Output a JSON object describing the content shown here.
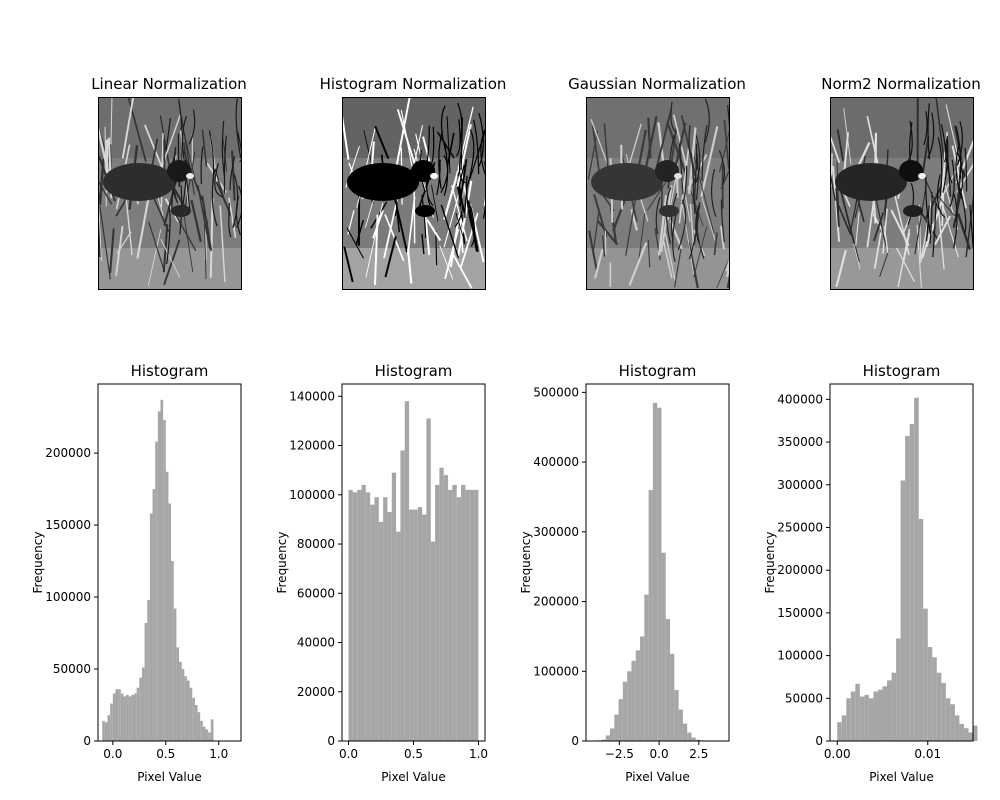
{
  "figure": {
    "photo_panels": [
      {
        "title": "Linear Normalization",
        "image": "grayscale photo of a coot bird among reeds (linear normalization)"
      },
      {
        "title": "Histogram Normalization",
        "image": "grayscale photo of a coot bird among reeds (histogram equalized, higher contrast)"
      },
      {
        "title": "Gaussian Normalization",
        "image": "grayscale photo of a coot bird among reeds (gaussian normalization)"
      },
      {
        "title": "Norm2 Normalization",
        "image": "grayscale photo of a coot bird among reeds (norm2 normalization)"
      }
    ],
    "bar_color": "#a6a6a6"
  },
  "chart_data": [
    {
      "type": "bar",
      "title": "Histogram",
      "xlabel": "Pixel Value",
      "ylabel": "Frequency",
      "xlim": [
        -0.14,
        1.21
      ],
      "ylim": [
        0,
        248000
      ],
      "xticks": [
        0.0,
        0.5,
        1.0
      ],
      "xtick_labels": [
        "0.0",
        "0.5",
        "1.0"
      ],
      "yticks": [
        0,
        50000,
        100000,
        150000,
        200000
      ],
      "ytick_labels": [
        "0",
        "50000",
        "100000",
        "150000",
        "200000"
      ],
      "bin_start": -0.1,
      "bin_width": 0.025,
      "values": [
        14000,
        13000,
        18000,
        26000,
        33000,
        36000,
        36000,
        33000,
        31000,
        32000,
        31000,
        32000,
        33000,
        37000,
        44000,
        51000,
        82000,
        98000,
        158000,
        175000,
        208000,
        229000,
        237000,
        223000,
        187000,
        165000,
        125000,
        92000,
        65000,
        55000,
        50000,
        45000,
        42000,
        37000,
        30000,
        25000,
        20000,
        14000,
        10000,
        8000,
        6000,
        15000
      ],
      "grid": false
    },
    {
      "type": "bar",
      "title": "Histogram",
      "xlabel": "Pixel Value",
      "ylabel": "Frequency",
      "xlim": [
        -0.05,
        1.05
      ],
      "ylim": [
        0,
        145000
      ],
      "xticks": [
        0.0,
        0.5,
        1.0
      ],
      "xtick_labels": [
        "0.0",
        "0.5",
        "1.0"
      ],
      "yticks": [
        0,
        20000,
        40000,
        60000,
        80000,
        100000,
        120000,
        140000
      ],
      "ytick_labels": [
        "0",
        "20000",
        "40000",
        "60000",
        "80000",
        "100000",
        "120000",
        "140000"
      ],
      "bin_start": 0.0,
      "bin_width": 0.0333,
      "values": [
        102000,
        101000,
        102000,
        104000,
        101000,
        96000,
        99000,
        89000,
        99000,
        93000,
        109000,
        85000,
        118000,
        138000,
        94000,
        94000,
        95000,
        92000,
        131000,
        81000,
        104000,
        111000,
        108000,
        102000,
        104000,
        99000,
        104000,
        102000,
        102000,
        102000
      ],
      "grid": false
    },
    {
      "type": "bar",
      "title": "Histogram",
      "xlabel": "Pixel Value",
      "ylabel": "Frequency",
      "xlim": [
        -4.6,
        4.4
      ],
      "ylim": [
        0,
        512000
      ],
      "xticks": [
        -2.5,
        0.0,
        2.5
      ],
      "xtick_labels": [
        "−2.5",
        "0.0",
        "2.5"
      ],
      "yticks": [
        0,
        100000,
        200000,
        300000,
        400000,
        500000
      ],
      "ytick_labels": [
        "0",
        "100000",
        "200000",
        "300000",
        "400000",
        "500000"
      ],
      "bin_start": -3.9,
      "bin_width": 0.27,
      "values": [
        1000,
        2000,
        8000,
        18000,
        38000,
        60000,
        85000,
        100000,
        115000,
        130000,
        150000,
        210000,
        360000,
        485000,
        478000,
        270000,
        175000,
        125000,
        73000,
        45000,
        25000,
        12000,
        5000,
        2000,
        1000
      ],
      "grid": false
    },
    {
      "type": "bar",
      "title": "Histogram",
      "xlabel": "Pixel Value",
      "ylabel": "Frequency",
      "xlim": [
        -0.0008,
        0.015
      ],
      "ylim": [
        0,
        418000
      ],
      "xticks": [
        0.0,
        0.01
      ],
      "xtick_labels": [
        "0.00",
        "0.01"
      ],
      "yticks": [
        0,
        50000,
        100000,
        150000,
        200000,
        250000,
        300000,
        350000,
        400000
      ],
      "ytick_labels": [
        "0",
        "50000",
        "100000",
        "150000",
        "200000",
        "250000",
        "300000",
        "350000",
        "400000"
      ],
      "bin_start": 0.0,
      "bin_width": 0.0005,
      "values": [
        22000,
        30000,
        50000,
        58000,
        67000,
        52000,
        54000,
        50000,
        58000,
        60000,
        64000,
        71000,
        80000,
        120000,
        305000,
        357000,
        371000,
        402000,
        260000,
        155000,
        110000,
        98000,
        80000,
        68000,
        50000,
        43000,
        30000,
        20000,
        15000,
        10000,
        18000
      ],
      "grid": false
    }
  ]
}
